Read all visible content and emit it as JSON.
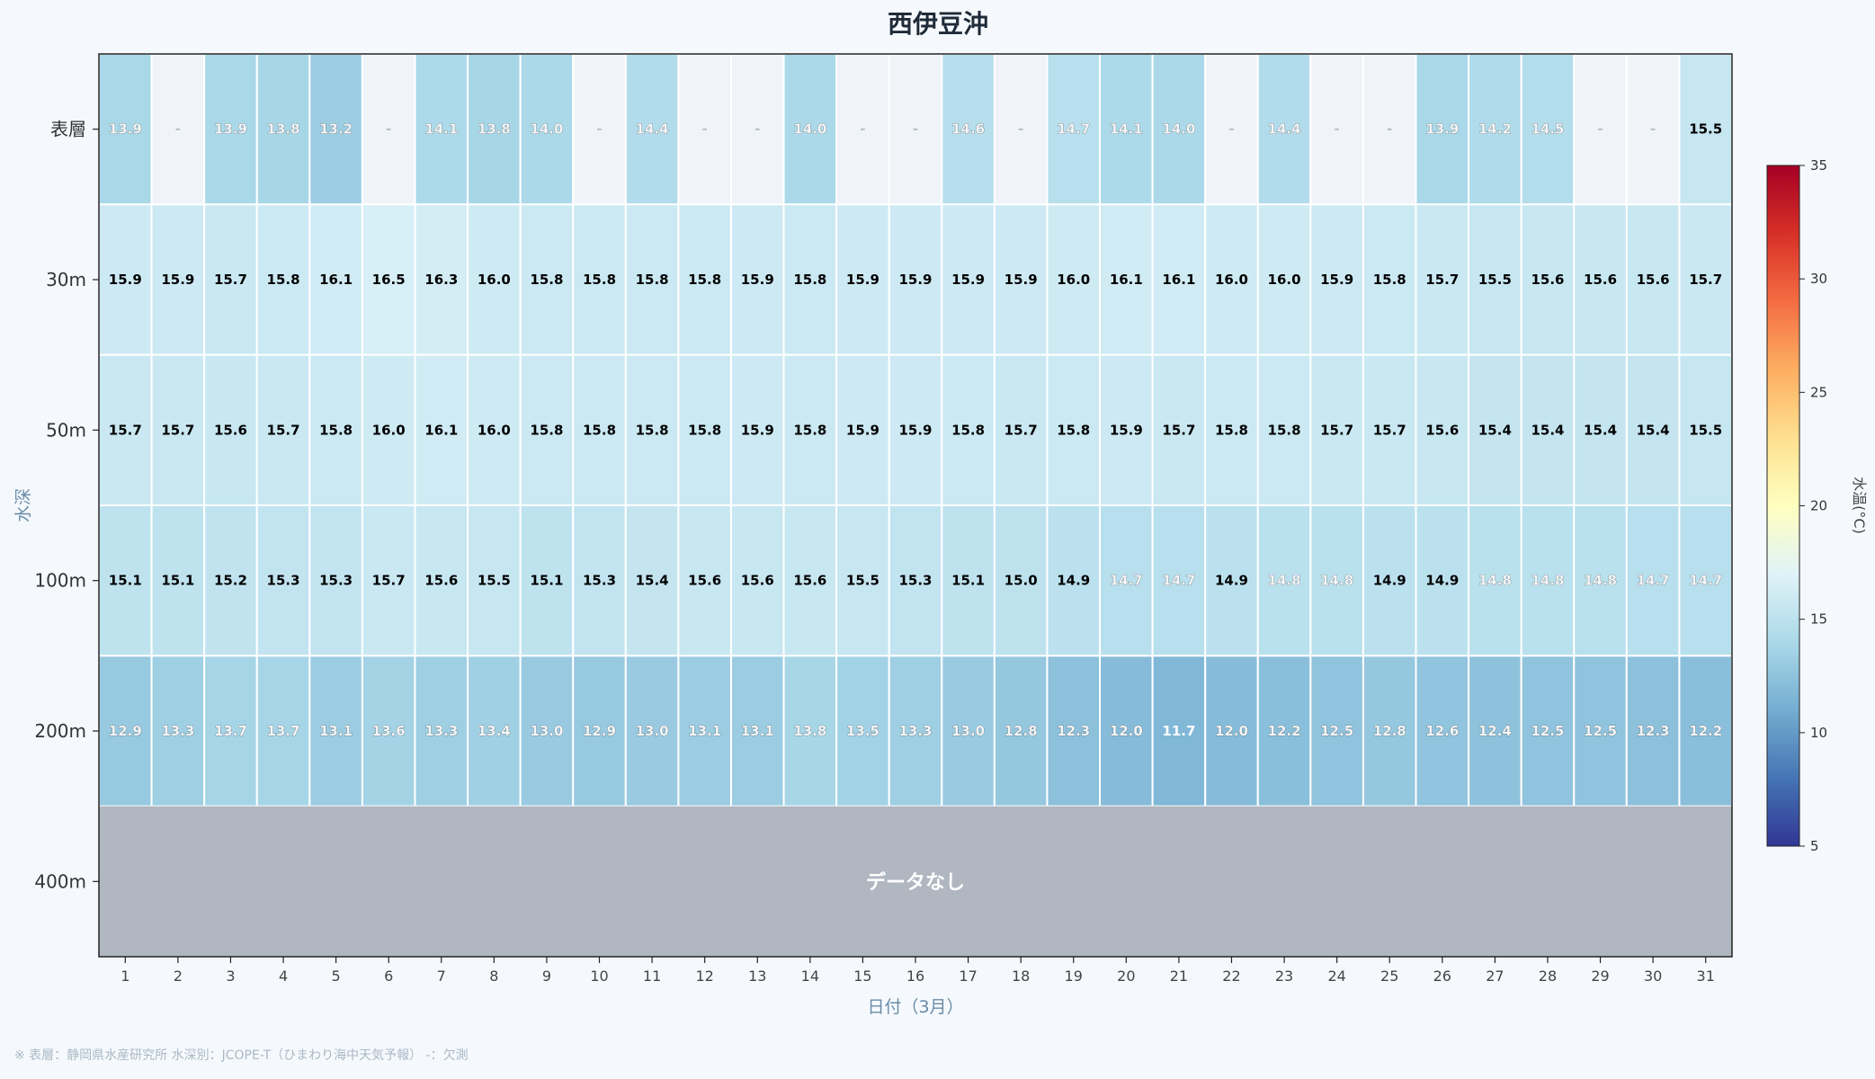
{
  "chart_data": {
    "type": "heatmap",
    "title": "西伊豆沖",
    "xlabel": "日付（3月）",
    "ylabel": "水深",
    "x": [
      "1",
      "2",
      "3",
      "4",
      "5",
      "6",
      "7",
      "8",
      "9",
      "10",
      "11",
      "12",
      "13",
      "14",
      "15",
      "16",
      "17",
      "18",
      "19",
      "20",
      "21",
      "22",
      "23",
      "24",
      "25",
      "26",
      "27",
      "28",
      "29",
      "30",
      "31"
    ],
    "rows": [
      "表層",
      "30m",
      "50m",
      "100m",
      "200m",
      "400m"
    ],
    "values": [
      [
        13.9,
        null,
        13.9,
        13.8,
        13.2,
        null,
        14.1,
        13.8,
        14.0,
        null,
        14.4,
        null,
        null,
        14.0,
        null,
        null,
        14.6,
        null,
        14.7,
        14.1,
        14.0,
        null,
        14.4,
        null,
        null,
        13.9,
        14.2,
        14.5,
        null,
        null,
        15.5
      ],
      [
        15.9,
        15.9,
        15.7,
        15.8,
        16.1,
        16.5,
        16.3,
        16.0,
        15.8,
        15.8,
        15.8,
        15.8,
        15.9,
        15.8,
        15.9,
        15.9,
        15.9,
        15.9,
        16.0,
        16.1,
        16.1,
        16.0,
        16.0,
        15.9,
        15.8,
        15.7,
        15.5,
        15.6,
        15.6,
        15.6,
        15.7
      ],
      [
        15.7,
        15.7,
        15.6,
        15.7,
        15.8,
        16.0,
        16.1,
        16.0,
        15.8,
        15.8,
        15.8,
        15.8,
        15.9,
        15.8,
        15.9,
        15.9,
        15.8,
        15.7,
        15.8,
        15.9,
        15.7,
        15.8,
        15.8,
        15.7,
        15.7,
        15.6,
        15.4,
        15.4,
        15.4,
        15.4,
        15.5
      ],
      [
        15.1,
        15.1,
        15.2,
        15.3,
        15.3,
        15.7,
        15.6,
        15.5,
        15.1,
        15.3,
        15.4,
        15.6,
        15.6,
        15.6,
        15.5,
        15.3,
        15.1,
        15.0,
        14.9,
        14.7,
        14.7,
        14.9,
        14.8,
        14.8,
        14.9,
        14.9,
        14.8,
        14.8,
        14.8,
        14.7,
        14.7
      ],
      [
        12.9,
        13.3,
        13.7,
        13.7,
        13.1,
        13.6,
        13.3,
        13.4,
        13.0,
        12.9,
        13.0,
        13.1,
        13.1,
        13.8,
        13.5,
        13.3,
        13.0,
        12.8,
        12.3,
        12.0,
        11.7,
        12.0,
        12.2,
        12.5,
        12.8,
        12.6,
        12.4,
        12.5,
        12.5,
        12.3,
        12.2
      ],
      null
    ],
    "missing_label": "-",
    "no_data_label": "データなし",
    "colorbar": {
      "label": "水温(°C)",
      "range": [
        5,
        35
      ],
      "ticks": [
        5,
        10,
        15,
        20,
        25,
        30,
        35
      ],
      "colormap": "RdYlBu_r"
    },
    "colors": {
      "missing_cell": "#f0f4f9",
      "no_data_band": "#b0b7c1",
      "cell_border": "#ffffff"
    }
  },
  "footnote": "※ 表層：静岡県水産研究所  水深別：JCOPE-T（ひまわり海中天気予報）  -：欠測"
}
